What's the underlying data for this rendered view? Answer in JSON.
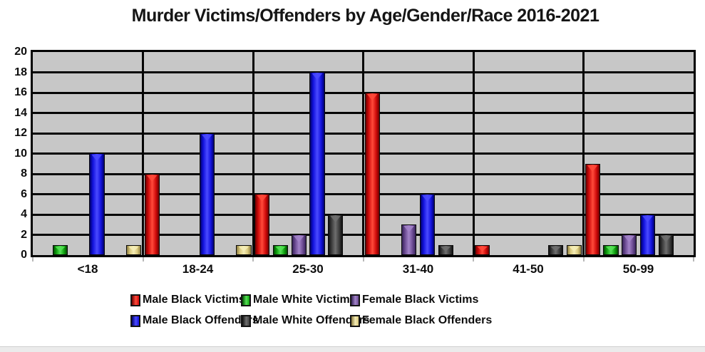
{
  "chart_data": {
    "type": "bar",
    "title": "Murder Victims/Offenders by Age/Gender/Race 2016-2021",
    "categories": [
      "<18",
      "18-24",
      "25-30",
      "31-40",
      "41-50",
      "50-99"
    ],
    "series": [
      {
        "name": "Male Black Victims",
        "color": "#cf0a0a",
        "highlight": "#ff4a3a",
        "shadow": "#6e0000",
        "values": [
          0,
          8,
          6,
          16,
          1,
          9
        ]
      },
      {
        "name": "Male White Victims",
        "color": "#0fa00f",
        "highlight": "#55e055",
        "shadow": "#004d00",
        "values": [
          1,
          0,
          1,
          0,
          0,
          1
        ]
      },
      {
        "name": "Female Black Victims",
        "color": "#6b4b92",
        "highlight": "#a384c9",
        "shadow": "#372358",
        "values": [
          0,
          0,
          2,
          3,
          0,
          2
        ]
      },
      {
        "name": "Male Black Offenders",
        "color": "#1212dd",
        "highlight": "#4a4aff",
        "shadow": "#00006a",
        "values": [
          10,
          12,
          18,
          6,
          0,
          4
        ]
      },
      {
        "name": "Male White Offenders",
        "color": "#3c3c3c",
        "highlight": "#6e6e6e",
        "shadow": "#101010",
        "values": [
          0,
          0,
          4,
          1,
          1,
          2
        ]
      },
      {
        "name": "Female Black Offenders",
        "color": "#d8c87c",
        "highlight": "#f5edb6",
        "shadow": "#8a7a3e",
        "values": [
          1,
          1,
          0,
          0,
          1,
          0
        ]
      }
    ],
    "ylim": [
      0,
      20
    ],
    "yticks": [
      0,
      2,
      4,
      6,
      8,
      10,
      12,
      14,
      16,
      18,
      20
    ],
    "xlabel": "",
    "ylabel": "",
    "grid": true,
    "plot_background": "#c7c7c7",
    "legend_position": "bottom",
    "legend_rows": [
      [
        0,
        1,
        2
      ],
      [
        3,
        4,
        5
      ]
    ]
  }
}
